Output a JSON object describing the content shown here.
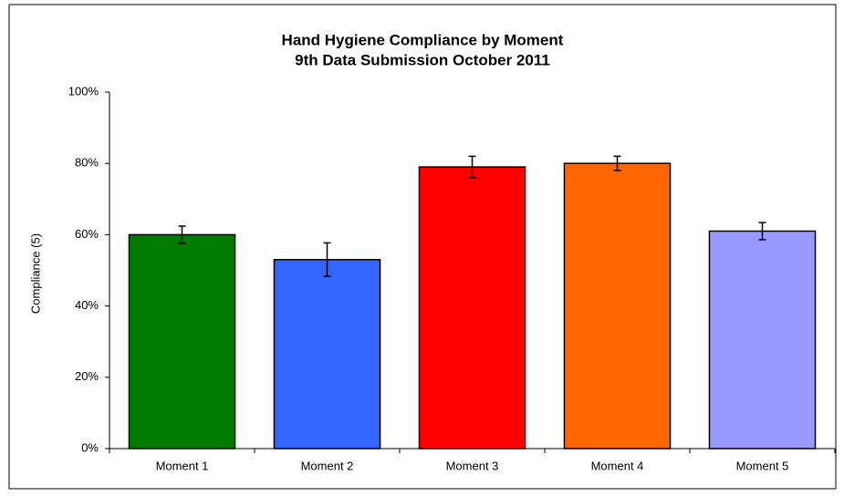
{
  "chart_data": {
    "type": "bar",
    "title": "Hand Hygiene Compliance by Moment",
    "subtitle": "9th  Data Submission October 2011",
    "y_label": "Compliance (5)",
    "categories": [
      "Moment 1",
      "Moment 2",
      "Moment 3",
      "Moment 4",
      "Moment 5"
    ],
    "values": [
      60,
      53,
      79,
      80,
      61
    ],
    "errors": [
      2.4,
      4.7,
      3,
      2,
      2.4
    ],
    "colors": [
      "#007a00",
      "#3366ff",
      "#ff0000",
      "#ff6600",
      "#9999ff"
    ],
    "ylim": [
      0,
      100
    ],
    "yticks": [
      {
        "value": 0,
        "label": "0%"
      },
      {
        "value": 20,
        "label": "20%"
      },
      {
        "value": 40,
        "label": "40%"
      },
      {
        "value": 60,
        "label": "60%"
      },
      {
        "value": 80,
        "label": "80%"
      },
      {
        "value": 100,
        "label": "100%"
      }
    ],
    "grid": false
  }
}
